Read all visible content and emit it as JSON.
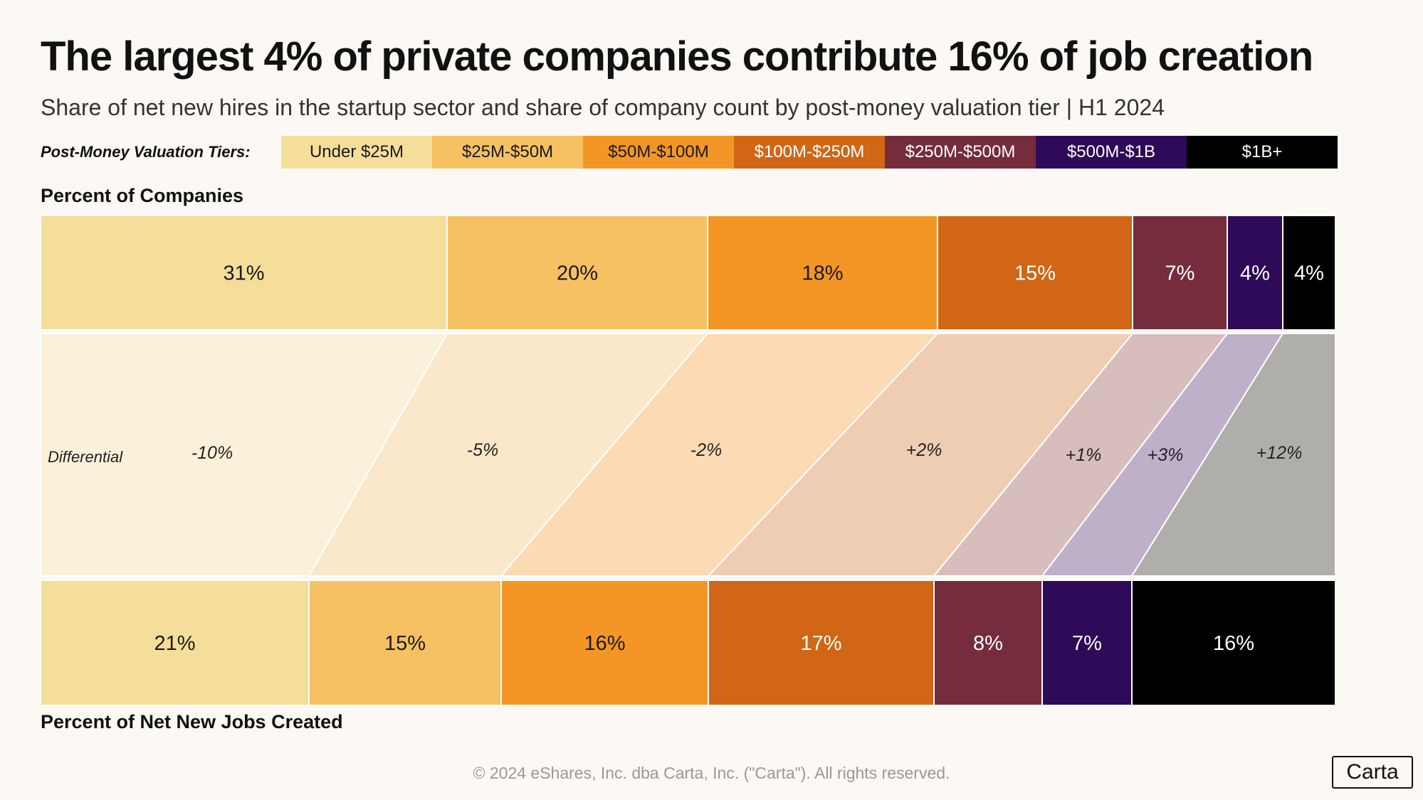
{
  "header": {
    "title": "The largest 4% of private companies contribute 16% of job creation",
    "subtitle": "Share of net new hires  in the startup sector and share of company count by post-money valuation tier | H1 2024"
  },
  "legend": {
    "label": "Post-Money Valuation Tiers:"
  },
  "footer": {
    "copyright": "© 2024 eShares, Inc. dba Carta, Inc. (\"Carta\"). All rights reserved.",
    "logo": "Carta"
  },
  "chart_data": {
    "type": "bar",
    "subtype": "stacked-100-comparison",
    "title": "The largest 4% of private companies contribute 16% of job creation",
    "subtitle": "Share of net new hires  in the startup sector and share of company count by post-money valuation tier | H1 2024",
    "legend_title": "Post-Money Valuation Tiers:",
    "categories": [
      "Under $25M",
      "$25M-$50M",
      "$50M-$100M",
      "$100M-$250M",
      "$250M-$500M",
      "$500M-$1B",
      "$1B+"
    ],
    "colors": [
      "#f5de9a",
      "#f5c162",
      "#f49625",
      "#d16616",
      "#752c3d",
      "#2e0a58",
      "#000000"
    ],
    "band_colors": [
      "#fbf0da",
      "#fbe8cb",
      "#fbdab4",
      "#efcdb2",
      "#d7bdbb",
      "#bfb0ca",
      "#b0aeab"
    ],
    "series": [
      {
        "name": "Percent of Companies",
        "labels": [
          "31%",
          "20%",
          "18%",
          "15%",
          "7%",
          "4%",
          "4%"
        ]
      },
      {
        "name": "Percent of Net New Jobs Created",
        "labels": [
          "21%",
          "15%",
          "16%",
          "17%",
          "8%",
          "7%",
          "16%"
        ]
      }
    ],
    "differential": {
      "label": "Differential",
      "values": [
        "-10%",
        "-5%",
        "-2%",
        "+2%",
        "+1%",
        "+3%",
        "+12%"
      ]
    }
  }
}
